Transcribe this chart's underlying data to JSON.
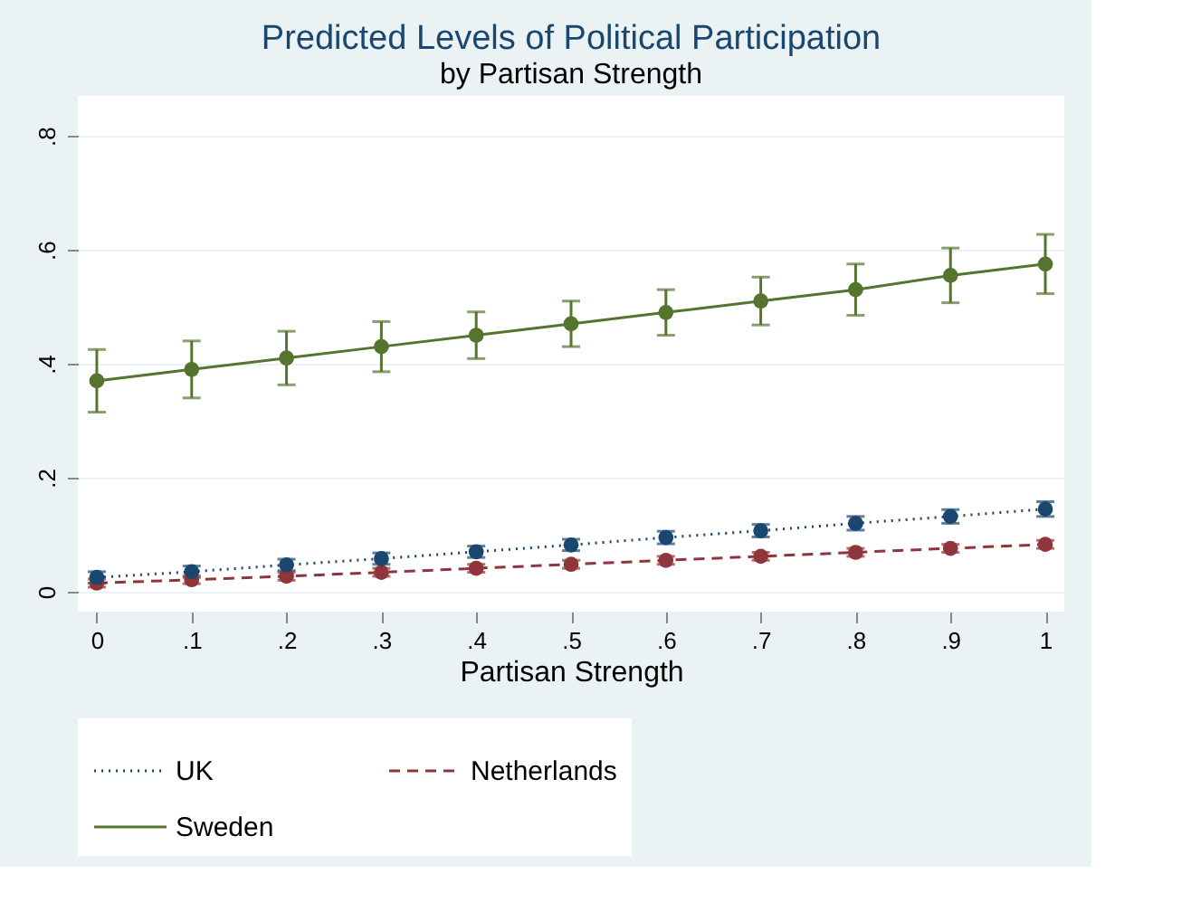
{
  "chart_data": {
    "type": "line",
    "title": "Predicted Levels of Political Participation",
    "subtitle": "by Partisan Strength",
    "xlabel": "Partisan Strength",
    "x": [
      0,
      0.1,
      0.2,
      0.3,
      0.4,
      0.5,
      0.6,
      0.7,
      0.8,
      0.9,
      1
    ],
    "series": [
      {
        "name": "UK",
        "color": "#1a476f",
        "line_style": "dotted",
        "values": [
          0.025,
          0.035,
          0.047,
          0.058,
          0.07,
          0.082,
          0.095,
          0.107,
          0.12,
          0.132,
          0.145
        ],
        "errors": [
          0.01,
          0.01,
          0.01,
          0.01,
          0.01,
          0.01,
          0.011,
          0.011,
          0.012,
          0.012,
          0.013
        ]
      },
      {
        "name": "Netherlands",
        "color": "#90353b",
        "line_style": "dashed",
        "values": [
          0.015,
          0.021,
          0.027,
          0.034,
          0.041,
          0.048,
          0.055,
          0.062,
          0.069,
          0.076,
          0.083
        ],
        "errors": [
          0.007,
          0.007,
          0.007,
          0.007,
          0.007,
          0.007,
          0.007,
          0.007,
          0.007,
          0.007,
          0.007
        ]
      },
      {
        "name": "Sweden",
        "color": "#55752f",
        "line_style": "solid",
        "values": [
          0.37,
          0.39,
          0.41,
          0.43,
          0.45,
          0.47,
          0.49,
          0.51,
          0.53,
          0.555,
          0.575
        ],
        "errors": [
          0.055,
          0.05,
          0.047,
          0.044,
          0.041,
          0.04,
          0.04,
          0.042,
          0.045,
          0.048,
          0.052
        ]
      }
    ],
    "marker": "circle",
    "grid": "y",
    "legend": "bottom",
    "xlim": [
      -0.02,
      1.02
    ],
    "ylim": [
      -0.035,
      0.87
    ],
    "xticks": [
      0,
      {
        "value": 0.1,
        "label": ".1"
      },
      {
        "value": 0.2,
        "label": ".2"
      },
      {
        "value": 0.3,
        "label": ".3"
      },
      {
        "value": 0.4,
        "label": ".4"
      },
      {
        "value": 0.5,
        "label": ".5"
      },
      {
        "value": 0.6,
        "label": ".6"
      },
      {
        "value": 0.7,
        "label": ".7"
      },
      {
        "value": 0.8,
        "label": ".8"
      },
      {
        "value": 0.9,
        "label": ".9"
      },
      1
    ],
    "yticks": [
      0,
      {
        "value": 0.2,
        "label": ".2"
      },
      {
        "value": 0.4,
        "label": ".4"
      },
      {
        "value": 0.6,
        "label": ".6"
      },
      {
        "value": 0.8,
        "label": ".8"
      }
    ]
  }
}
